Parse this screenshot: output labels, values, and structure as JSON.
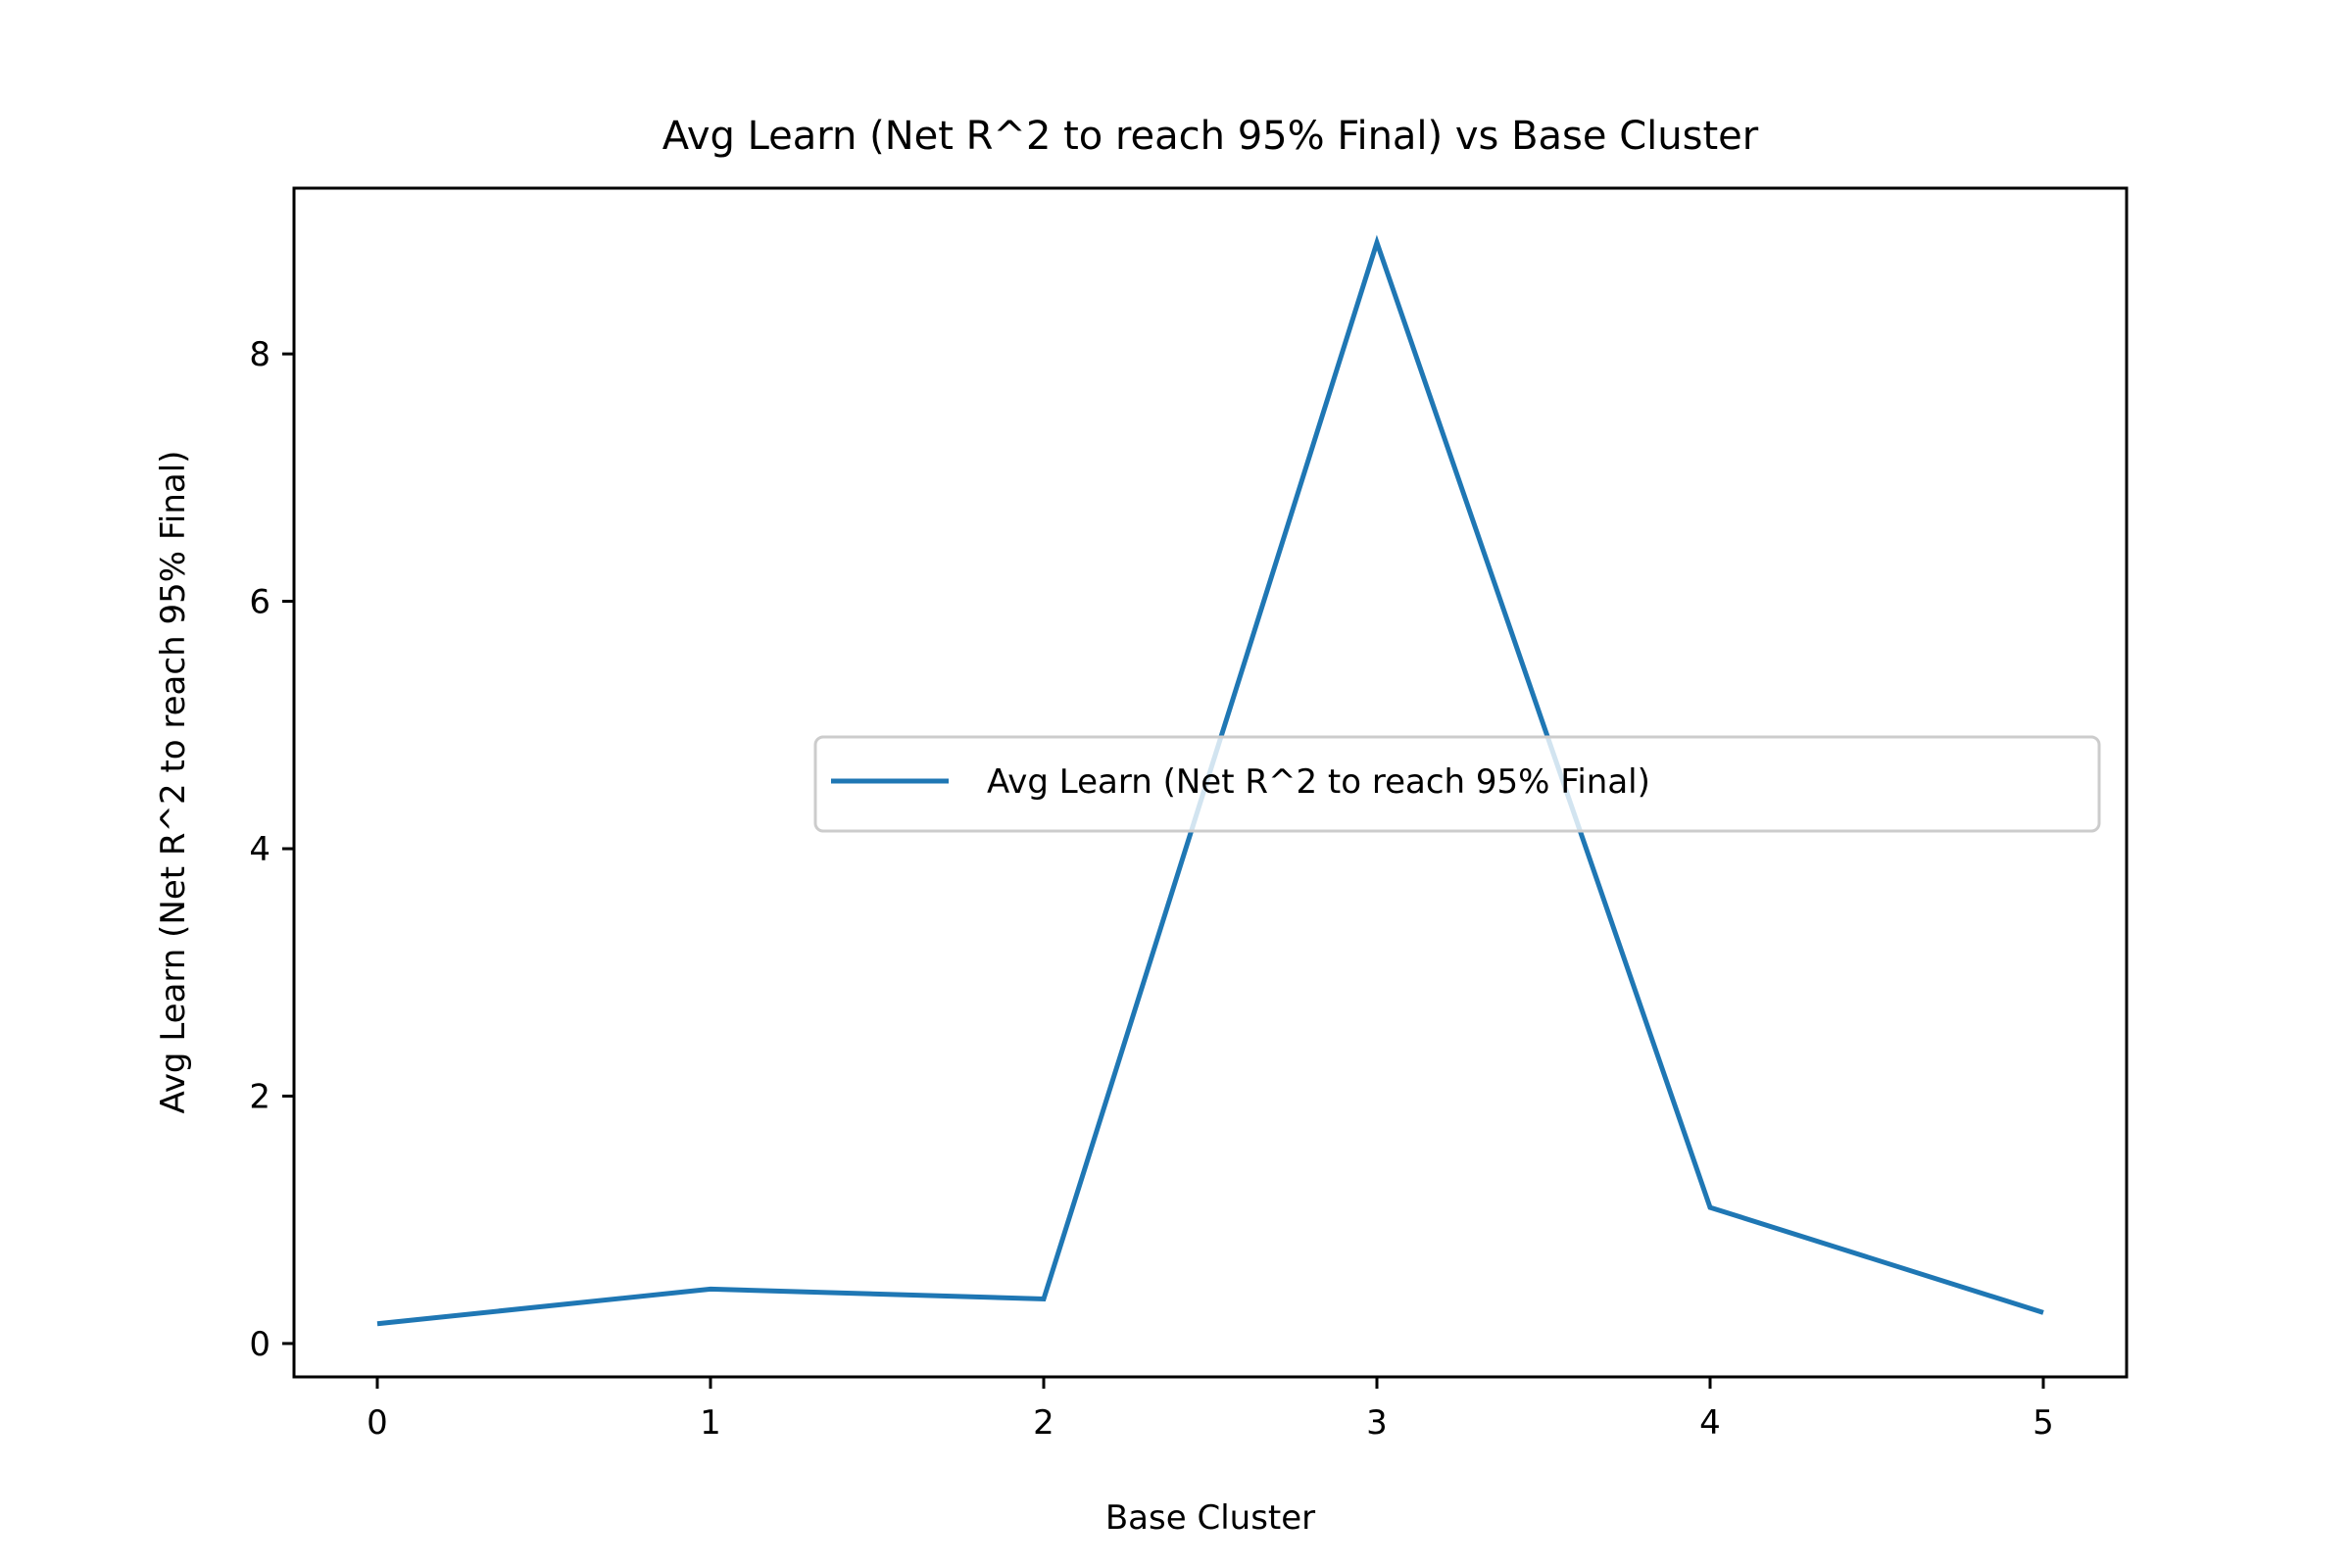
{
  "chart_data": {
    "type": "line",
    "title": "Avg Learn (Net R^2 to reach 95% Final) vs Base Cluster",
    "xlabel": "Base Cluster",
    "ylabel": "Avg Learn (Net R^2 to reach 95% Final)",
    "x": [
      0,
      1,
      2,
      3,
      4,
      5
    ],
    "series": [
      {
        "name": "Avg Learn (Net R^2 to reach 95% Final)",
        "values": [
          0.16,
          0.44,
          0.36,
          8.9,
          1.1,
          0.25
        ],
        "color": "#1f77b4"
      }
    ],
    "xlim": [
      -0.25,
      5.25
    ],
    "ylim": [
      -0.27,
      9.34
    ],
    "xticks": [
      "0",
      "1",
      "2",
      "3",
      "4",
      "5"
    ],
    "yticks": [
      "0",
      "2",
      "4",
      "6",
      "8"
    ],
    "grid": false,
    "legend_position": "center-right"
  }
}
